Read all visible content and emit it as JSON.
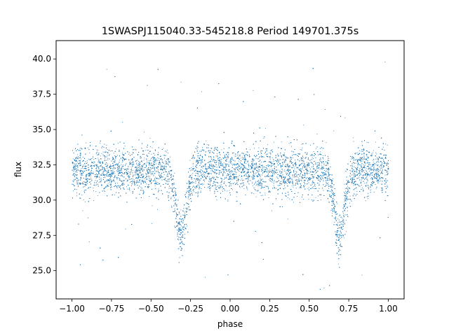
{
  "chart_data": {
    "type": "scatter",
    "title": "1SWASPJ115040.33-545218.8 Period 149701.375s",
    "xlabel": "phase",
    "ylabel": "flux",
    "xlim": [
      -1.1,
      1.1
    ],
    "ylim": [
      23.0,
      41.3
    ],
    "x_ticks": [
      -1.0,
      -0.75,
      -0.5,
      -0.25,
      0.0,
      0.25,
      0.5,
      0.75,
      1.0
    ],
    "x_tick_labels": [
      "−1.00",
      "−0.75",
      "−0.50",
      "−0.25",
      "0.00",
      "0.25",
      "0.50",
      "0.75",
      "1.00"
    ],
    "y_ticks": [
      25.0,
      27.5,
      30.0,
      32.5,
      35.0,
      37.5,
      40.0
    ],
    "y_tick_labels": [
      "25.0",
      "27.5",
      "30.0",
      "32.5",
      "35.0",
      "37.5",
      "40.0"
    ],
    "grid": false,
    "legend": "none",
    "series": [
      {
        "color": "#1f77b4",
        "description_points": [
          {
            "x": -1.0,
            "y": 32.0
          },
          {
            "x": -0.75,
            "y": 32.3
          },
          {
            "x": -0.5,
            "y": 32.0
          },
          {
            "x": -0.42,
            "y": 31.5
          },
          {
            "x": -0.36,
            "y": 29.0
          },
          {
            "x": -0.31,
            "y": 27.8
          },
          {
            "x": -0.26,
            "y": 29.5
          },
          {
            "x": -0.2,
            "y": 32.0
          },
          {
            "x": 0.0,
            "y": 32.1
          },
          {
            "x": 0.25,
            "y": 32.2
          },
          {
            "x": 0.5,
            "y": 32.0
          },
          {
            "x": 0.58,
            "y": 31.5
          },
          {
            "x": 0.64,
            "y": 29.0
          },
          {
            "x": 0.69,
            "y": 27.8
          },
          {
            "x": 0.74,
            "y": 29.5
          },
          {
            "x": 0.8,
            "y": 32.0
          },
          {
            "x": 1.0,
            "y": 32.1
          }
        ],
        "primary_eclipse_phases": [
          -0.31,
          0.69
        ],
        "eclipse_min_flux": 27.5,
        "baseline_flux": 32.1,
        "scatter_band": [
          30.0,
          34.5
        ],
        "outlier_range": [
          23.5,
          40.5
        ]
      }
    ]
  }
}
